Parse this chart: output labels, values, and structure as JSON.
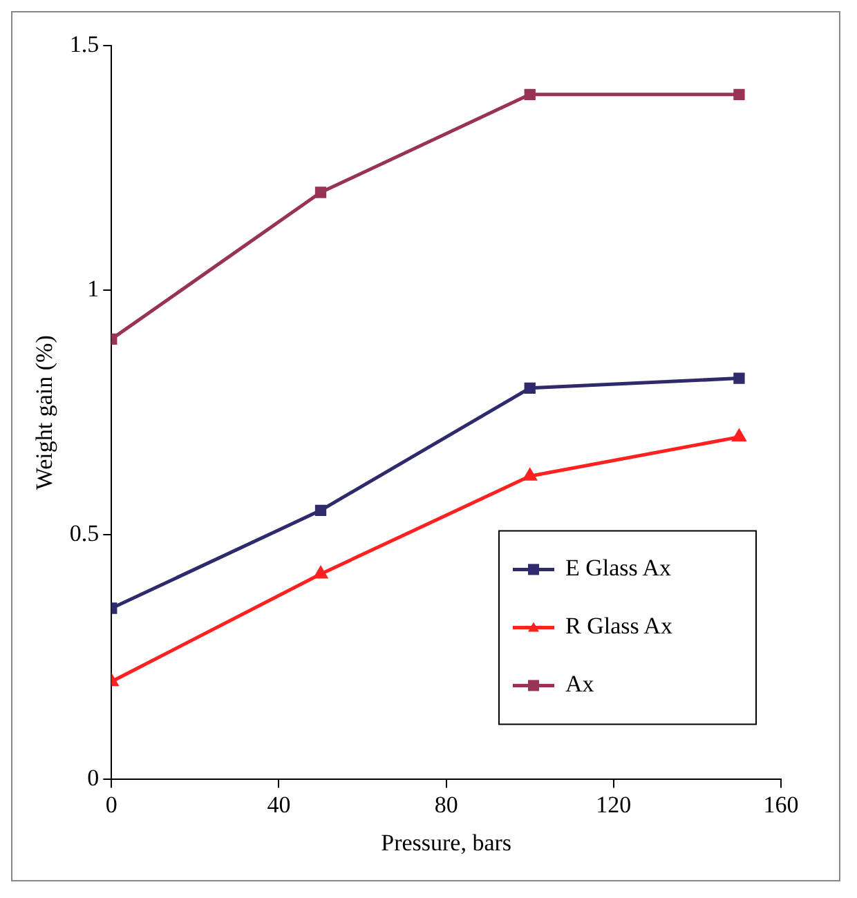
{
  "chart_data": {
    "type": "line",
    "xlabel": "Pressure, bars",
    "ylabel": "Weight gain (%)",
    "x": [
      0,
      50,
      100,
      150
    ],
    "xlim": [
      0,
      160
    ],
    "xticks": [
      0,
      40,
      80,
      120,
      160
    ],
    "ylim": [
      0,
      1.5
    ],
    "yticks": [
      0,
      0.5,
      1,
      1.5
    ],
    "grid": false,
    "legend": "bottom right",
    "line_style": "solid",
    "series": [
      {
        "name": "E Glass Ax",
        "color": "#2e2a6b",
        "marker": "square",
        "values": [
          0.35,
          0.55,
          0.8,
          0.82
        ]
      },
      {
        "name": "R Glass Ax",
        "color": "#ff2020",
        "marker": "triangle",
        "values": [
          0.2,
          0.42,
          0.62,
          0.7
        ]
      },
      {
        "name": "Ax",
        "color": "#993355",
        "marker": "square",
        "values": [
          0.9,
          1.2,
          1.4,
          1.4
        ]
      }
    ]
  }
}
